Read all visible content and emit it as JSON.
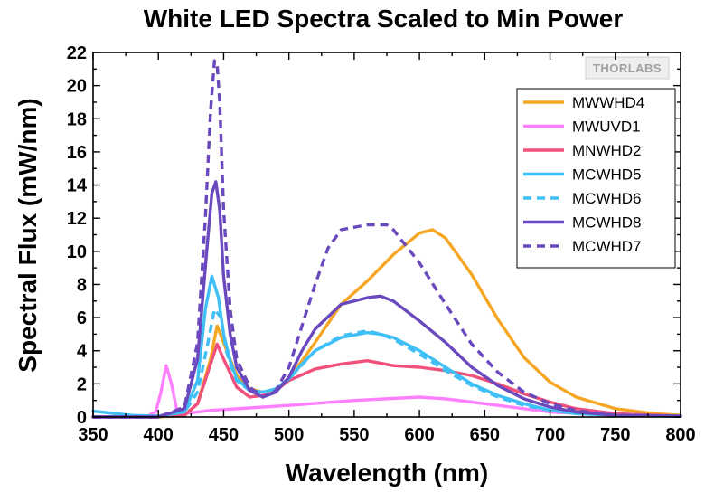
{
  "logo": {
    "text": "THORLABS"
  },
  "chart_data": {
    "type": "line",
    "title": "White LED Spectra Scaled to Min Power",
    "xlabel": "Wavelength (nm)",
    "ylabel": "Spectral Flux (mW/nm)",
    "xlim": [
      350,
      800
    ],
    "ylim": [
      0,
      22
    ],
    "xticks": [
      350,
      400,
      450,
      500,
      550,
      600,
      650,
      700,
      750,
      800
    ],
    "yticks": [
      0,
      2,
      4,
      6,
      8,
      10,
      12,
      14,
      16,
      18,
      20,
      22
    ],
    "grid": false,
    "legend_position": "top-right",
    "series": [
      {
        "name": "MWWHD4",
        "color": "#f5a623",
        "dash": "solid",
        "x": [
          350,
          400,
          420,
          430,
          440,
          445,
          450,
          460,
          470,
          480,
          490,
          500,
          520,
          540,
          560,
          580,
          600,
          610,
          620,
          640,
          660,
          680,
          700,
          720,
          750,
          780,
          800
        ],
        "y": [
          0,
          0,
          0.1,
          0.8,
          3.5,
          5.5,
          4.5,
          2.5,
          1.7,
          1.5,
          1.6,
          2.3,
          4.5,
          6.8,
          8.2,
          9.8,
          11.1,
          11.3,
          10.8,
          8.6,
          5.9,
          3.6,
          2.1,
          1.2,
          0.5,
          0.2,
          0.1
        ]
      },
      {
        "name": "MWUVD1",
        "color": "#ff80ff",
        "dash": "solid",
        "x": [
          350,
          390,
          398,
          402,
          406,
          410,
          414,
          420,
          440,
          500,
          550,
          600,
          620,
          650,
          700,
          750,
          800
        ],
        "y": [
          0,
          0,
          0.3,
          1.5,
          3.1,
          2.0,
          0.5,
          0.2,
          0.4,
          0.7,
          1.0,
          1.2,
          1.1,
          0.8,
          0.3,
          0.1,
          0.05
        ]
      },
      {
        "name": "MNWHD2",
        "color": "#f0507a",
        "dash": "solid",
        "x": [
          350,
          420,
          430,
          440,
          445,
          450,
          460,
          470,
          480,
          490,
          500,
          520,
          540,
          560,
          580,
          600,
          620,
          640,
          660,
          680,
          700,
          720,
          750,
          800
        ],
        "y": [
          0,
          0.1,
          0.8,
          3.2,
          4.4,
          3.5,
          1.8,
          1.2,
          1.3,
          1.6,
          2.2,
          2.9,
          3.2,
          3.4,
          3.1,
          3.0,
          2.8,
          2.5,
          2.0,
          1.4,
          0.9,
          0.5,
          0.2,
          0.05
        ]
      },
      {
        "name": "MCWHD5",
        "color": "#3fbff5",
        "dash": "solid",
        "x": [
          350,
          380,
          400,
          420,
          430,
          436,
          441,
          446,
          450,
          455,
          460,
          470,
          480,
          490,
          500,
          510,
          520,
          540,
          560,
          570,
          580,
          600,
          620,
          640,
          660,
          680,
          700,
          720,
          750,
          800
        ],
        "y": [
          0.35,
          0.1,
          0.05,
          0.3,
          2.2,
          6.5,
          8.5,
          7.2,
          5.0,
          3.4,
          2.3,
          1.6,
          1.5,
          1.7,
          2.3,
          3.2,
          4.0,
          4.8,
          5.1,
          5.0,
          4.8,
          4.0,
          3.0,
          2.0,
          1.3,
          0.8,
          0.4,
          0.2,
          0.1,
          0.05
        ]
      },
      {
        "name": "MCWHD6",
        "color": "#3fbff5",
        "dash": "dashed",
        "x": [
          350,
          400,
          420,
          430,
          438,
          443,
          448,
          452,
          456,
          460,
          470,
          480,
          490,
          500,
          520,
          540,
          560,
          570,
          580,
          600,
          620,
          640,
          660,
          680,
          700,
          750,
          800
        ],
        "y": [
          0,
          0.05,
          0.3,
          1.5,
          4.5,
          6.5,
          6.0,
          4.0,
          3.0,
          2.2,
          1.6,
          1.5,
          1.7,
          2.3,
          4.0,
          4.9,
          5.2,
          5.0,
          4.7,
          3.8,
          2.8,
          1.9,
          1.2,
          0.7,
          0.4,
          0.1,
          0.05
        ]
      },
      {
        "name": "MCWHD8",
        "color": "#6a48bd",
        "dash": "solid",
        "x": [
          350,
          400,
          420,
          430,
          437,
          441,
          444,
          447,
          450,
          455,
          460,
          470,
          480,
          490,
          500,
          510,
          520,
          540,
          560,
          570,
          580,
          600,
          620,
          640,
          660,
          680,
          700,
          720,
          750,
          800
        ],
        "y": [
          0,
          0,
          0.5,
          3.5,
          10.0,
          13.5,
          14.2,
          12.5,
          8.5,
          5.0,
          3.0,
          1.6,
          1.2,
          1.5,
          2.4,
          4.0,
          5.3,
          6.8,
          7.2,
          7.3,
          7.0,
          5.8,
          4.5,
          3.0,
          1.9,
          1.1,
          0.6,
          0.3,
          0.1,
          0.05
        ]
      },
      {
        "name": "MCWHD7",
        "color": "#6a48bd",
        "dash": "dashed",
        "x": [
          350,
          400,
          420,
          430,
          436,
          440,
          443,
          445,
          447,
          450,
          455,
          460,
          470,
          480,
          490,
          500,
          510,
          520,
          530,
          540,
          560,
          575,
          580,
          600,
          620,
          640,
          660,
          680,
          700,
          720,
          750,
          800
        ],
        "y": [
          0,
          0,
          0.6,
          4.5,
          12.0,
          18.5,
          21.5,
          21.3,
          19.0,
          12.5,
          6.5,
          3.5,
          1.8,
          1.2,
          1.6,
          3.0,
          5.5,
          8.0,
          10.2,
          11.3,
          11.6,
          11.6,
          11.3,
          9.3,
          6.8,
          4.4,
          2.7,
          1.5,
          0.8,
          0.4,
          0.1,
          0.05
        ]
      }
    ]
  }
}
